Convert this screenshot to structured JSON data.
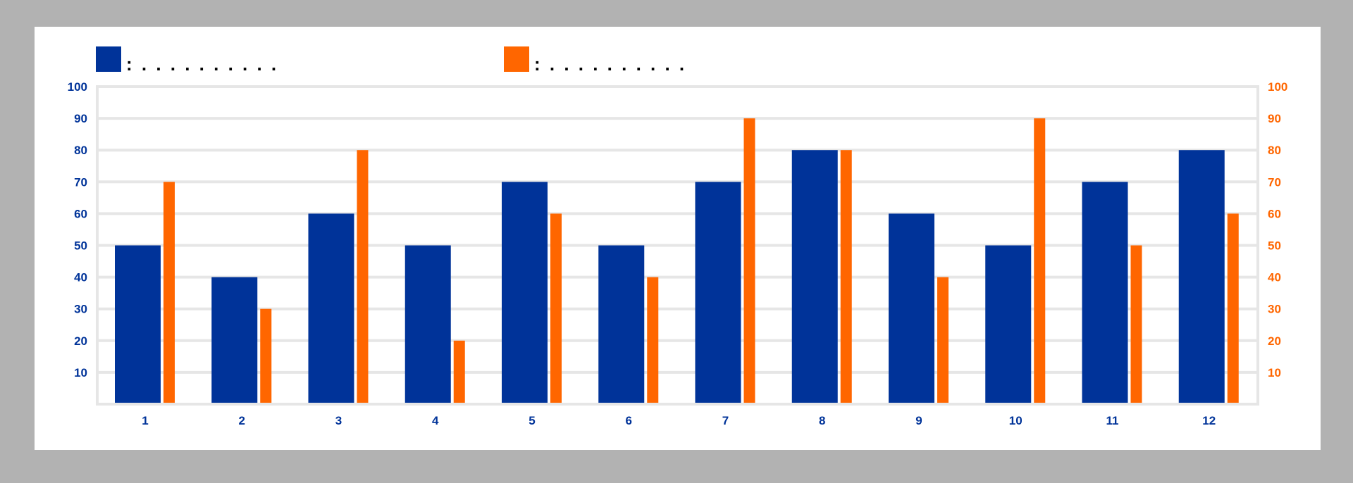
{
  "colors": {
    "background": "#b2b2b2",
    "panel": "#ffffff",
    "series_1": "#003399",
    "series_2": "#ff6600",
    "grid": "#e6e6e6"
  },
  "chart_data": {
    "type": "bar",
    "categories": [
      "1",
      "2",
      "3",
      "4",
      "5",
      "6",
      "7",
      "8",
      "9",
      "10",
      "11",
      "12"
    ],
    "series": [
      {
        "values": [
          50,
          40,
          60,
          50,
          70,
          50,
          70,
          80,
          60,
          50,
          70,
          80
        ],
        "color": "#003399",
        "axis": "left"
      },
      {
        "values": [
          70,
          30,
          80,
          20,
          60,
          40,
          90,
          80,
          40,
          90,
          50,
          60
        ],
        "color": "#ff6600",
        "axis": "right"
      }
    ],
    "legend": [
      {
        "label": ": . . . . . . . . . .",
        "color": "#003399"
      },
      {
        "label": ": . . . . . . . . . .",
        "color": "#ff6600"
      }
    ],
    "legend_position": "top",
    "ylim": [
      0,
      100
    ],
    "y_ticks": [
      10,
      20,
      30,
      40,
      50,
      60,
      70,
      80,
      90,
      100
    ],
    "y_tick_labels": [
      "10",
      "20",
      "30",
      "40",
      "50",
      "60",
      "70",
      "80",
      "90",
      "100"
    ],
    "ylim_right": [
      0,
      100
    ],
    "y_ticks_right": [
      10,
      20,
      30,
      40,
      50,
      60,
      70,
      80,
      90,
      100
    ],
    "y_tick_labels_right": [
      "10",
      "20",
      "30",
      "40",
      "50",
      "60",
      "70",
      "80",
      "90",
      "100"
    ],
    "grid": true
  }
}
